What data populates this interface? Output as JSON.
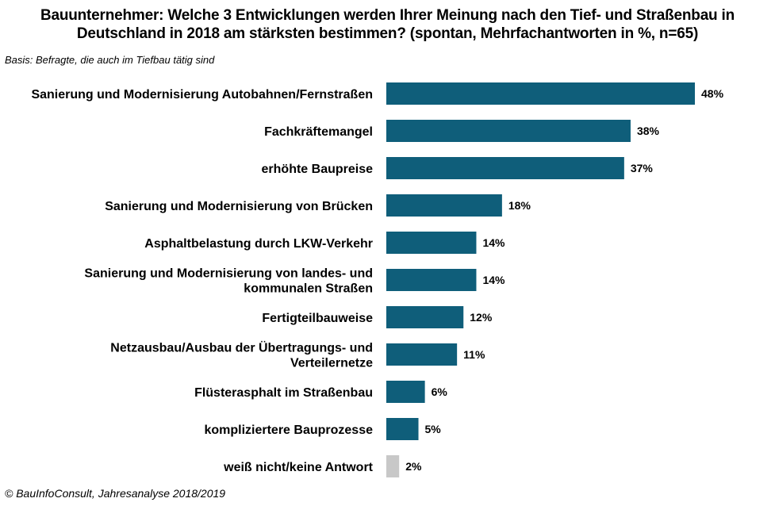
{
  "header": {
    "title_line1": "Bauunternehmer:  Welche 3 Entwicklungen  werden Ihrer Meinung  nach den Tief- und Straßenbau in",
    "title_line2": "Deutschland  in 2018 am stärksten bestimmen?  (spontan,  Mehrfachantworten  in %, n=65)",
    "basis": "Basis: Befragte, die auch im Tiefbau tätig sind"
  },
  "footer": {
    "source": "© BauInfoConsult, Jahresanalyse 2018/2019"
  },
  "chart_data": {
    "type": "bar",
    "orientation": "horizontal",
    "categories": [
      [
        "Sanierung und Modernisierung Autobahnen/Fernstraßen"
      ],
      [
        "Fachkräftemangel"
      ],
      [
        "erhöhte Baupreise"
      ],
      [
        "Sanierung und Modernisierung von Brücken"
      ],
      [
        "Asphaltbelastung durch LKW-Verkehr"
      ],
      [
        "Sanierung und Modernisierung von landes- und",
        "kommunalen Straßen"
      ],
      [
        "Fertigteilbauweise"
      ],
      [
        "Netzausbau/Ausbau der Übertragungs- und",
        "Verteilernetze"
      ],
      [
        "Flüsterasphalt im Straßenbau"
      ],
      [
        "kompliziertere Bauprozesse"
      ],
      [
        "weiß nicht/keine Antwort"
      ]
    ],
    "values": [
      48,
      38,
      37,
      18,
      14,
      14,
      12,
      11,
      6,
      5,
      2
    ],
    "value_labels": [
      "48%",
      "38%",
      "37%",
      "18%",
      "14%",
      "14%",
      "12%",
      "11%",
      "6%",
      "5%",
      "2%"
    ],
    "bar_colors": [
      "#0f5e7a",
      "#0f5e7a",
      "#0f5e7a",
      "#0f5e7a",
      "#0f5e7a",
      "#0f5e7a",
      "#0f5e7a",
      "#0f5e7a",
      "#0f5e7a",
      "#0f5e7a",
      "#c8c8c8"
    ],
    "xlim": [
      0,
      48
    ],
    "grid": false,
    "legend": "none"
  }
}
